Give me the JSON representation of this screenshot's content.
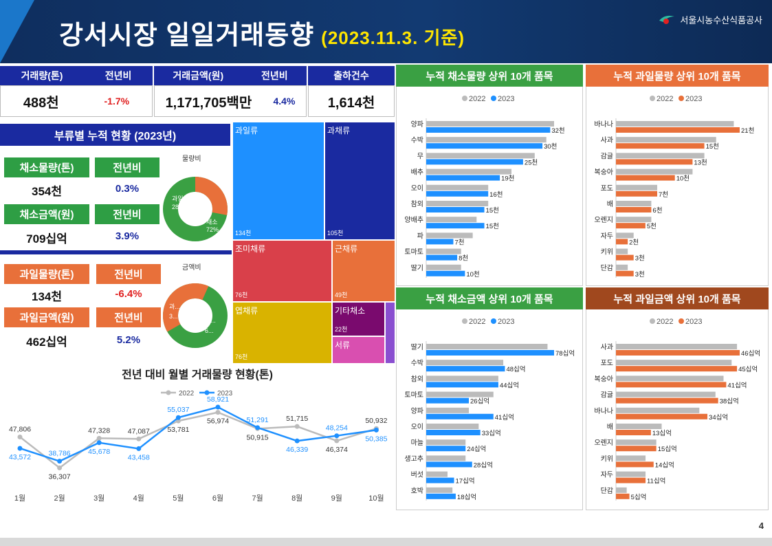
{
  "header": {
    "title": "강서시장 일일거래동향",
    "subtitle": "(2023.11.3. 기준)",
    "org": "서울시농수산식품공사"
  },
  "kpi": {
    "vol_label": "거래량(톤)",
    "vol_yoy_label": "전년비",
    "vol_value": "488천",
    "vol_yoy": "-1.7%",
    "amt_label": "거래금액(원)",
    "amt_yoy_label": "전년비",
    "amt_value": "1,171,705백만",
    "amt_yoy": "4.4%",
    "cnt_label": "출하건수",
    "cnt_value": "1,614천"
  },
  "category": {
    "title": "부류별 누적 현황 (2023년)",
    "veg_vol_label": "채소물량(톤)",
    "veg_vol_yoy_label": "전년비",
    "veg_vol": "354천",
    "veg_vol_yoy": "0.3%",
    "veg_amt_label": "채소금액(원)",
    "veg_amt_yoy_label": "전년비",
    "veg_amt": "709십억",
    "veg_amt_yoy": "3.9%",
    "fruit_vol_label": "과일물량(톤)",
    "fruit_vol_yoy_label": "전년비",
    "fruit_vol": "134천",
    "fruit_vol_yoy": "-6.4%",
    "fruit_amt_label": "과일금액(원)",
    "fruit_amt_yoy_label": "전년비",
    "fruit_amt": "462십억",
    "fruit_amt_yoy": "5.2%",
    "donut1_title": "물량비",
    "donut1_fruit_label": "과일",
    "donut1_fruit_pct": "28%",
    "donut1_veg_label": "채소",
    "donut1_veg_pct": "72%",
    "donut2_title": "금액비",
    "donut2_fruit_label": "과...",
    "donut2_fruit_pct": "3...",
    "donut2_veg_label": "채...",
    "donut2_veg_pct": "6..."
  },
  "treemap": [
    {
      "name": "과일류",
      "value": "134천",
      "color": "#1e90ff"
    },
    {
      "name": "과채류",
      "value": "105천",
      "color": "#1a2aa0"
    },
    {
      "name": "조미채류",
      "value": "76천",
      "color": "#d9404a"
    },
    {
      "name": "근채류",
      "value": "49천",
      "color": "#e8703a"
    },
    {
      "name": "엽채류",
      "value": "76천",
      "color": "#d9b300"
    },
    {
      "name": "기타채소",
      "value": "22천",
      "color": "#7a0a6e"
    },
    {
      "name": "서류",
      "value": "",
      "color": "#d94fb0"
    },
    {
      "name": "",
      "value": "",
      "color": "#8a4fd0"
    }
  ],
  "chart_data": [
    {
      "type": "line",
      "title": "전년 대비 월별 거래물량 현황(톤)",
      "categories": [
        "1월",
        "2월",
        "3월",
        "4월",
        "5월",
        "6월",
        "7월",
        "8월",
        "9월",
        "10월"
      ],
      "series": [
        {
          "name": "2022",
          "color": "#bbbbbb",
          "values": [
            47806,
            36307,
            47328,
            47087,
            53781,
            56974,
            50915,
            51715,
            46374,
            50932
          ],
          "labels": [
            "47,806",
            "36,307",
            "47,328",
            "47,087",
            "53,781",
            "56,974",
            "50,915",
            "51,715",
            "46,374",
            "50,932"
          ]
        },
        {
          "name": "2023",
          "color": "#1e90ff",
          "values": [
            43572,
            38786,
            45678,
            43458,
            55037,
            58921,
            51291,
            46339,
            48254,
            50385
          ],
          "labels": [
            "43,572",
            "38,786",
            "45,678",
            "43,458",
            "55,037",
            "58,921",
            "51,291",
            "46,339",
            "48,254",
            "50,385"
          ]
        }
      ]
    },
    {
      "type": "bar",
      "title": "누적 채소물량 상위 10개 품목",
      "legend": [
        "2022",
        "2023"
      ],
      "categories": [
        "양파",
        "수박",
        "무",
        "배추",
        "오이",
        "참외",
        "양배추",
        "파",
        "토마토",
        "딸기"
      ],
      "series": [
        {
          "name": "2022",
          "values": [
            33,
            31,
            28,
            22,
            16,
            16,
            13,
            12,
            9,
            9
          ]
        },
        {
          "name": "2023",
          "values": [
            32,
            30,
            25,
            19,
            16,
            15,
            15,
            7,
            8,
            10
          ]
        }
      ],
      "labels": [
        "32천",
        "30천",
        "25천",
        "19천",
        "16천",
        "15천",
        "15천",
        "7천",
        "8천",
        "10천"
      ]
    },
    {
      "type": "bar",
      "title": "누적 과일물량 상위 10개 품목",
      "legend": [
        "2022",
        "2023"
      ],
      "categories": [
        "바나나",
        "사과",
        "감귤",
        "복숭아",
        "포도",
        "배",
        "오렌지",
        "자두",
        "키위",
        "단감"
      ],
      "series": [
        {
          "name": "2022",
          "values": [
            20,
            17,
            15,
            13,
            7,
            6,
            6,
            3,
            2,
            2
          ]
        },
        {
          "name": "2023",
          "values": [
            21,
            15,
            13,
            10,
            7,
            6,
            5,
            2,
            3,
            3
          ]
        }
      ],
      "labels": [
        "21천",
        "15천",
        "13천",
        "10천",
        "7천",
        "6천",
        "5천",
        "2천",
        "3천",
        "3천"
      ]
    },
    {
      "type": "bar",
      "title": "누적 채소금액 상위 10개 품목",
      "legend": [
        "2022",
        "2023"
      ],
      "categories": [
        "딸기",
        "수박",
        "참외",
        "토마토",
        "양파",
        "오이",
        "마늘",
        "생고추",
        "버섯",
        "호박"
      ],
      "series": [
        {
          "name": "2022",
          "values": [
            74,
            47,
            44,
            41,
            26,
            32,
            24,
            24,
            13,
            16
          ]
        },
        {
          "name": "2023",
          "values": [
            78,
            48,
            44,
            26,
            41,
            33,
            24,
            28,
            17,
            18
          ]
        }
      ],
      "labels": [
        "78십억",
        "48십억",
        "44십억",
        "26십억",
        "41십억",
        "33십억",
        "24십억",
        "28십억",
        "17십억",
        "18십억"
      ]
    },
    {
      "type": "bar",
      "title": "누적 과일금액 상위 10개 품목",
      "legend": [
        "2022",
        "2023"
      ],
      "categories": [
        "사과",
        "포도",
        "복숭아",
        "감귤",
        "바나나",
        "배",
        "오렌지",
        "키위",
        "자두",
        "단감"
      ],
      "series": [
        {
          "name": "2022",
          "values": [
            45,
            43,
            40,
            37,
            31,
            17,
            15,
            11,
            11,
            4
          ]
        },
        {
          "name": "2023",
          "values": [
            46,
            45,
            41,
            38,
            34,
            13,
            15,
            14,
            11,
            5
          ]
        }
      ],
      "labels": [
        "46십억",
        "45십억",
        "41십억",
        "38십억",
        "34십억",
        "13십억",
        "15십억",
        "14십억",
        "11십억",
        "5십억"
      ]
    }
  ],
  "colors": {
    "blue2023": "#1e90ff",
    "orange2023": "#e8703a",
    "gray2022": "#bbbbbb",
    "green": "#3aa043",
    "brown": "#a0481e"
  },
  "page_number": "4"
}
